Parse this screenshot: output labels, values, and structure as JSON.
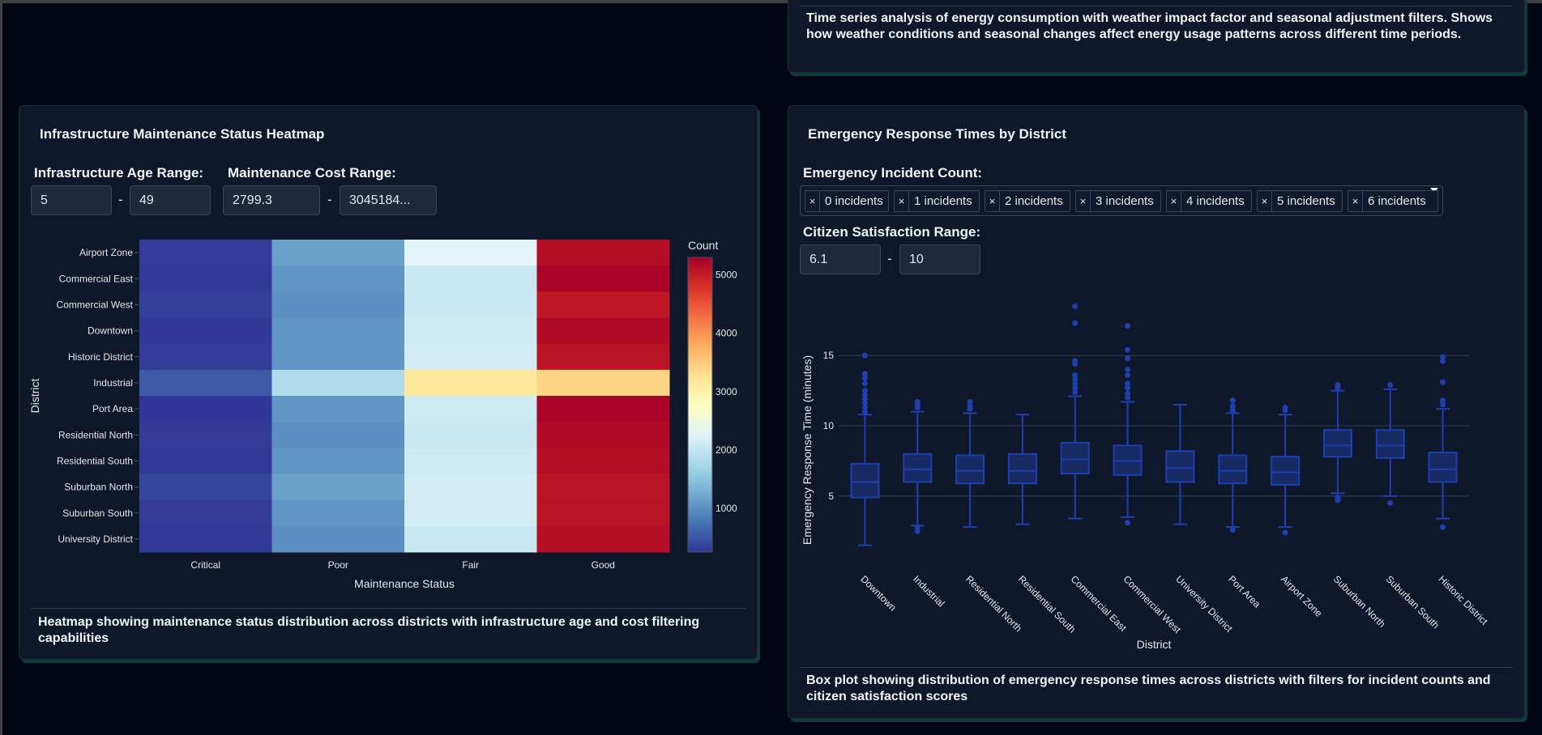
{
  "top_panel": {
    "description": "Time series analysis of energy consumption with weather impact factor and seasonal adjustment filters. Shows how weather conditions and seasonal changes affect energy usage patterns across different time periods."
  },
  "heatmap_panel": {
    "title": "Infrastructure Maintenance Status Heatmap",
    "age_range_label": "Infrastructure Age Range:",
    "age_min": "5",
    "age_max": "49",
    "cost_range_label": "Maintenance Cost Range:",
    "cost_min": "2799.3",
    "cost_max": "3045184...",
    "separator": "-",
    "description": "Heatmap showing maintenance status distribution across districts with infrastructure age and cost filtering capabilities"
  },
  "boxplot_panel": {
    "title": "Emergency Response Times by District",
    "incident_label": "Emergency Incident Count:",
    "incident_tags": [
      "0 incidents",
      "1 incidents",
      "2 incidents",
      "3 incidents",
      "4 incidents",
      "5 incidents",
      "6 incidents"
    ],
    "tag_remove_symbol": "×",
    "satisfaction_label": "Citizen Satisfaction Range:",
    "satisfaction_min": "6.1",
    "satisfaction_max": "10",
    "separator": "-",
    "description": "Box plot showing distribution of emergency response times across districts with filters for incident counts and citizen satisfaction scores"
  },
  "colors": {
    "page_bg": "#030713",
    "panel_bg": "#0f172a",
    "box_color": "#1e40af",
    "box_fill": "#172a63"
  },
  "chart_data": [
    {
      "type": "heatmap",
      "title": "",
      "xlabel": "Maintenance Status",
      "ylabel": "District",
      "x": [
        "Critical",
        "Poor",
        "Fair",
        "Good"
      ],
      "y": [
        "Airport Zone",
        "Commercial East",
        "Commercial West",
        "Downtown",
        "Historic District",
        "Industrial",
        "Port Area",
        "Residential North",
        "Residential South",
        "Suburban North",
        "Suburban South",
        "University District"
      ],
      "values": [
        [
          300,
          1150,
          2300,
          5150
        ],
        [
          280,
          1050,
          2050,
          5250
        ],
        [
          320,
          1000,
          2050,
          5050
        ],
        [
          270,
          1050,
          2100,
          5200
        ],
        [
          300,
          1050,
          2150,
          5100
        ],
        [
          550,
          1800,
          3150,
          3400
        ],
        [
          260,
          1050,
          2100,
          5250
        ],
        [
          290,
          1000,
          2050,
          5200
        ],
        [
          280,
          1050,
          2100,
          5150
        ],
        [
          380,
          1150,
          2150,
          5100
        ],
        [
          290,
          1050,
          2150,
          5100
        ],
        [
          280,
          1000,
          2050,
          5150
        ]
      ],
      "colorscale": "RdYlBu_r",
      "colorbar": {
        "title": "Count",
        "ticks": [
          1000,
          2000,
          3000,
          4000,
          5000
        ],
        "range": [
          250,
          5300
        ]
      }
    },
    {
      "type": "box",
      "title": "",
      "xlabel": "District",
      "ylabel": "Emergency Response Time (minutes)",
      "yticks": [
        5,
        10,
        15
      ],
      "ylim": [
        0.5,
        19.5
      ],
      "categories": [
        "Downtown",
        "Industrial",
        "Residential North",
        "Residential South",
        "Commercial East",
        "Commercial West",
        "University District",
        "Port Area",
        "Airport Zone",
        "Suburban North",
        "Suburban South",
        "Historic District"
      ],
      "boxes": [
        {
          "q1": 4.9,
          "median": 6.0,
          "q3": 7.3,
          "lower": 1.5,
          "upper": 10.8,
          "outliers": [
            11.0,
            11.3,
            11.6,
            11.9,
            12.2,
            12.5,
            13.0,
            13.4,
            13.7,
            15.0
          ]
        },
        {
          "q1": 6.0,
          "median": 6.9,
          "q3": 8.0,
          "lower": 2.9,
          "upper": 11.0,
          "outliers": [
            2.5,
            2.8,
            11.3,
            11.5,
            11.7
          ]
        },
        {
          "q1": 5.9,
          "median": 6.8,
          "q3": 7.9,
          "lower": 2.8,
          "upper": 10.9,
          "outliers": [
            11.2,
            11.4,
            11.7
          ]
        },
        {
          "q1": 5.9,
          "median": 6.8,
          "q3": 8.0,
          "lower": 3.0,
          "upper": 10.8,
          "outliers": []
        },
        {
          "q1": 6.6,
          "median": 7.6,
          "q3": 8.8,
          "lower": 3.4,
          "upper": 12.1,
          "outliers": [
            12.4,
            12.7,
            13.0,
            13.3,
            13.6,
            14.4,
            14.6,
            17.3,
            18.5
          ]
        },
        {
          "q1": 6.5,
          "median": 7.5,
          "q3": 8.6,
          "lower": 3.5,
          "upper": 11.7,
          "outliers": [
            3.1,
            12.0,
            12.3,
            12.7,
            13.0,
            13.6,
            14.0,
            14.8,
            15.4,
            17.1
          ]
        },
        {
          "q1": 6.0,
          "median": 7.0,
          "q3": 8.2,
          "lower": 3.0,
          "upper": 11.5,
          "outliers": []
        },
        {
          "q1": 5.9,
          "median": 6.8,
          "q3": 7.9,
          "lower": 2.8,
          "upper": 10.9,
          "outliers": [
            2.6,
            11.1,
            11.4,
            11.8
          ]
        },
        {
          "q1": 5.8,
          "median": 6.7,
          "q3": 7.8,
          "lower": 2.8,
          "upper": 10.8,
          "outliers": [
            2.4,
            11.1,
            11.3
          ]
        },
        {
          "q1": 7.8,
          "median": 8.6,
          "q3": 9.7,
          "lower": 5.2,
          "upper": 12.5,
          "outliers": [
            4.7,
            4.9,
            12.7,
            12.9
          ]
        },
        {
          "q1": 7.7,
          "median": 8.6,
          "q3": 9.7,
          "lower": 5.0,
          "upper": 12.6,
          "outliers": [
            4.5,
            12.9
          ]
        },
        {
          "q1": 6.0,
          "median": 6.9,
          "q3": 8.1,
          "lower": 3.4,
          "upper": 11.2,
          "outliers": [
            2.8,
            11.5,
            11.8,
            13.1,
            14.6,
            14.9
          ]
        }
      ]
    }
  ]
}
